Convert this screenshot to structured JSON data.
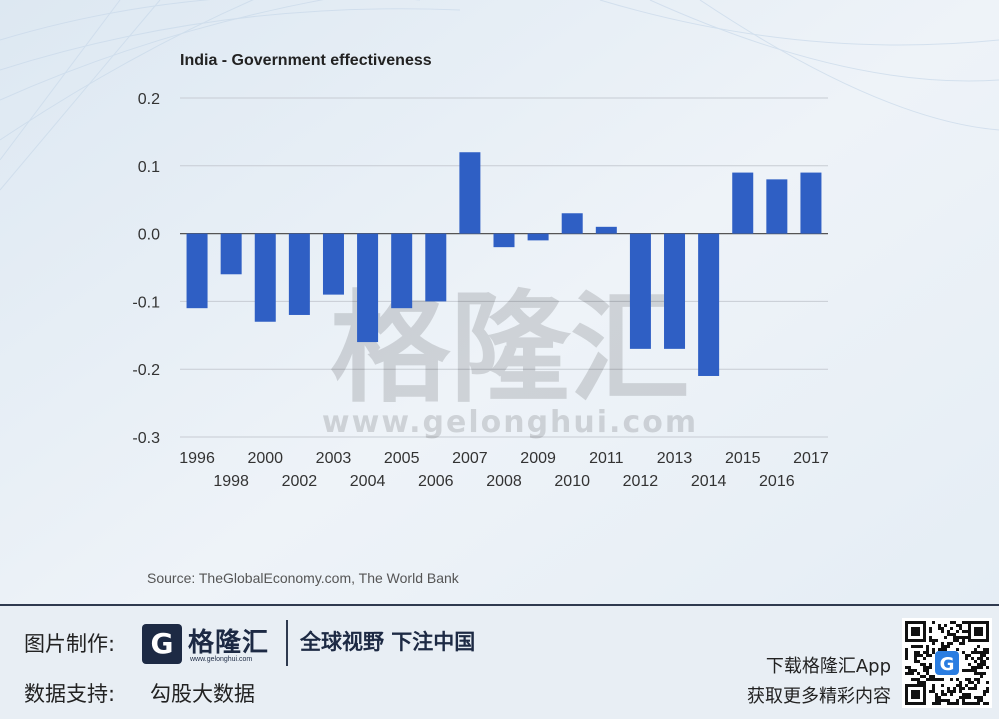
{
  "chart_data": {
    "type": "bar",
    "title": "India - Government effectiveness",
    "categories": [
      "1996",
      "1998",
      "2000",
      "2002",
      "2003",
      "2004",
      "2005",
      "2006",
      "2007",
      "2008",
      "2009",
      "2010",
      "2011",
      "2012",
      "2013",
      "2014",
      "2015",
      "2016",
      "2017"
    ],
    "values": [
      -0.11,
      -0.06,
      -0.13,
      -0.12,
      -0.09,
      -0.16,
      -0.11,
      -0.1,
      0.12,
      -0.02,
      -0.01,
      0.03,
      0.01,
      -0.17,
      -0.17,
      -0.21,
      0.09,
      0.08,
      0.09
    ],
    "yticks": [
      "0.2",
      "0.1",
      "0.0",
      "-0.1",
      "-0.2",
      "-0.3"
    ],
    "ylim": [
      -0.3,
      0.2
    ],
    "grid": true,
    "bar_color": "#2f5fc4",
    "source": "Source: TheGlobalEconomy.com, The World Bank"
  },
  "watermark": {
    "text": "格隆汇",
    "url": "www.gelonghui.com"
  },
  "footer": {
    "made_by_label": "图片制作:",
    "logo_letter": "G",
    "logo_name": "格隆汇",
    "logo_url": "www.gelonghui.com",
    "slogan": "全球视野 下注中国",
    "data_support_label": "数据支持:",
    "data_support_value": "勾股大数据",
    "app_line1": "下载格隆汇App",
    "app_line2": "获取更多精彩内容",
    "qr_center": "G"
  },
  "colors": {
    "accent_dark": "#1d2a44",
    "qr_blue": "#2a7de1"
  }
}
